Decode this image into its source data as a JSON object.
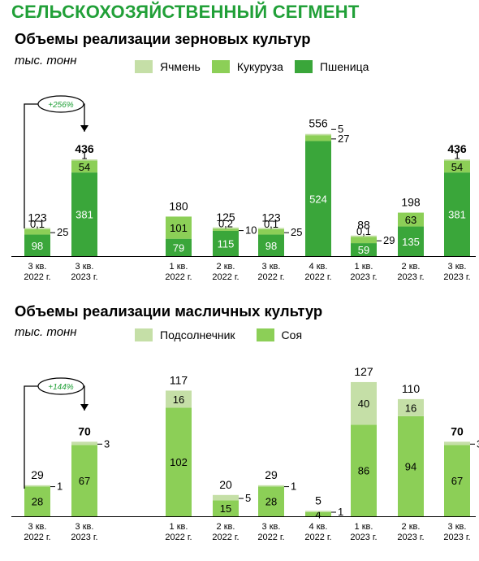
{
  "header": {
    "segment_title": "СЕЛЬСКОХОЗЯЙСТВЕННЫЙ СЕГМЕНТ"
  },
  "colors": {
    "brand": "#21a038",
    "barley": "#c5dfa7",
    "corn": "#8ccf57",
    "wheat": "#3aa63a",
    "sunflower": "#c5dfa7",
    "soy": "#8ccf57"
  },
  "chart_data": [
    {
      "type": "bar",
      "stacked": true,
      "title": "Объемы реализации зерновых культур",
      "unit": "тыс. тонн",
      "legend": [
        "Ячмень",
        "Кукуруза",
        "Пшеница"
      ],
      "growth_label": "+256%",
      "categories": [
        {
          "l1": "3 кв.",
          "l2": "2022 г."
        },
        {
          "l1": "3 кв.",
          "l2": "2023 г."
        },
        {
          "l1": "1 кв.",
          "l2": "2022 г."
        },
        {
          "l1": "2 кв.",
          "l2": "2022 г."
        },
        {
          "l1": "3 кв.",
          "l2": "2022 г."
        },
        {
          "l1": "4 кв.",
          "l2": "2022 г."
        },
        {
          "l1": "1 кв.",
          "l2": "2023 г."
        },
        {
          "l1": "2 кв.",
          "l2": "2023 г."
        },
        {
          "l1": "3 кв.",
          "l2": "2023 г."
        }
      ],
      "series": [
        {
          "name": "Пшеница",
          "values": [
            98,
            381,
            79,
            115,
            98,
            524,
            59,
            135,
            381
          ],
          "labels": [
            "98",
            "381",
            "79",
            "115",
            "98",
            "524",
            "59",
            "135",
            "381"
          ]
        },
        {
          "name": "Кукуруза",
          "values": [
            25,
            54,
            101,
            10,
            25,
            27,
            29,
            63,
            54
          ],
          "labels": [
            "25",
            "54",
            "101",
            "10",
            "25",
            "27",
            "29",
            "63",
            "54"
          ]
        },
        {
          "name": "Ячмень",
          "values": [
            0.1,
            1,
            0,
            0.2,
            0.1,
            5,
            0.1,
            0,
            1
          ],
          "labels": [
            "0,1",
            "1",
            "",
            "0,2",
            "0,1",
            "5",
            "0,1",
            "",
            "1"
          ]
        }
      ],
      "totals": [
        "123",
        "436",
        "180",
        "125",
        "123",
        "556",
        "88",
        "198",
        "436"
      ]
    },
    {
      "type": "bar",
      "stacked": true,
      "title": "Объемы реализации масличных культур",
      "unit": "тыс. тонн",
      "legend": [
        "Подсолнечник",
        "Соя"
      ],
      "growth_label": "+144%",
      "categories": [
        {
          "l1": "3 кв.",
          "l2": "2022 г."
        },
        {
          "l1": "3 кв.",
          "l2": "2023 г."
        },
        {
          "l1": "1 кв.",
          "l2": "2022 г."
        },
        {
          "l1": "2 кв.",
          "l2": "2022 г."
        },
        {
          "l1": "3 кв.",
          "l2": "2022 г."
        },
        {
          "l1": "4 кв.",
          "l2": "2022 г."
        },
        {
          "l1": "1 кв.",
          "l2": "2023 г."
        },
        {
          "l1": "2 кв.",
          "l2": "2023 г."
        },
        {
          "l1": "3 кв.",
          "l2": "2023 г."
        }
      ],
      "series": [
        {
          "name": "Соя",
          "values": [
            28,
            67,
            102,
            15,
            28,
            4,
            86,
            94,
            67
          ],
          "labels": [
            "28",
            "67",
            "102",
            "15",
            "28",
            "4",
            "86",
            "94",
            "67"
          ]
        },
        {
          "name": "Подсолнечник",
          "values": [
            1,
            3,
            16,
            5,
            1,
            1,
            40,
            16,
            3
          ],
          "labels": [
            "1",
            "3",
            "16",
            "5",
            "1",
            "1",
            "40",
            "16",
            "3"
          ]
        }
      ],
      "totals": [
        "29",
        "70",
        "117",
        "20",
        "29",
        "5",
        "127",
        "110",
        "70"
      ]
    }
  ]
}
